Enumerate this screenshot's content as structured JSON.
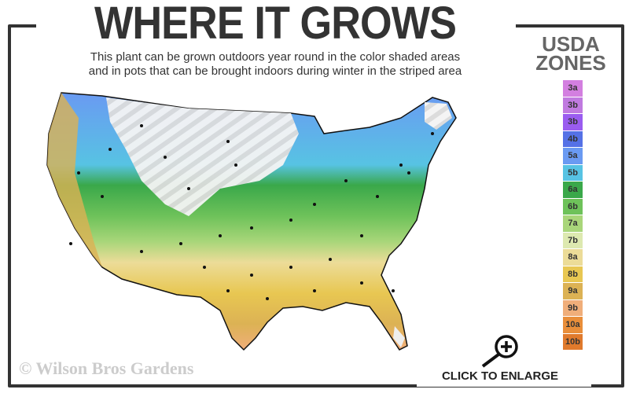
{
  "header": {
    "title": "WHERE IT GROWS",
    "subtitle_line1": "This plant can be grown outdoors year round in the color shaded areas",
    "subtitle_line2": "and in pots that can be brought indoors during winter in the striped area"
  },
  "legend": {
    "title_line1": "USDA",
    "title_line2": "ZONES",
    "zones": [
      {
        "label": "3a",
        "color": "#d37fe0"
      },
      {
        "label": "3b",
        "color": "#c07ae0"
      },
      {
        "label": "3b",
        "color": "#9a5cf0"
      },
      {
        "label": "4b",
        "color": "#5571e6"
      },
      {
        "label": "5a",
        "color": "#6a9af2"
      },
      {
        "label": "5b",
        "color": "#57c3e3"
      },
      {
        "label": "6a",
        "color": "#3aa84a"
      },
      {
        "label": "6b",
        "color": "#6ec25a"
      },
      {
        "label": "7a",
        "color": "#a9d67a"
      },
      {
        "label": "7b",
        "color": "#dde9b0"
      },
      {
        "label": "8a",
        "color": "#ecdc98"
      },
      {
        "label": "8b",
        "color": "#e8c752"
      },
      {
        "label": "9a",
        "color": "#dcb254"
      },
      {
        "label": "9b",
        "color": "#f0ae7a"
      },
      {
        "label": "10a",
        "color": "#e98e3a"
      },
      {
        "label": "10b",
        "color": "#e07a2c"
      }
    ]
  },
  "footer": {
    "copyright": "© Wilson Bros Gardens",
    "enlarge_label": "CLICK TO ENLARGE"
  },
  "icons": {
    "enlarge": "magnifier-plus-icon"
  }
}
